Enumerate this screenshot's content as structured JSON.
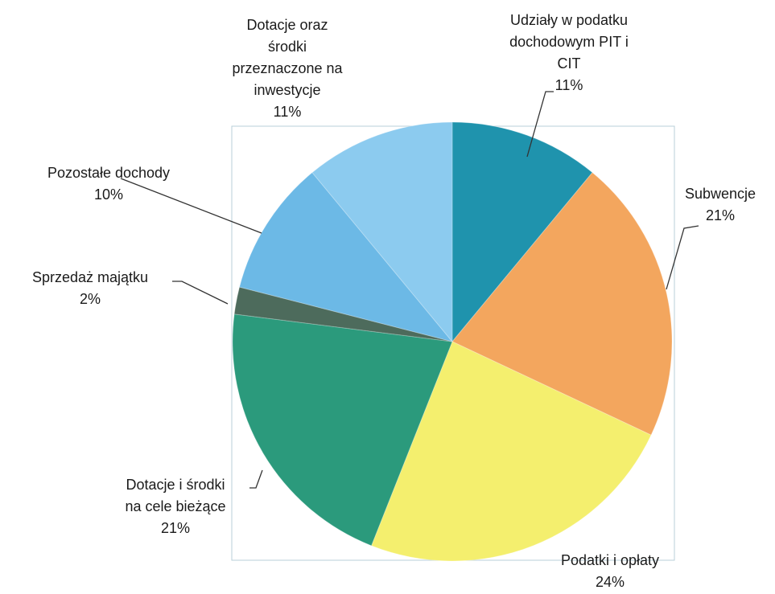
{
  "chart_data": {
    "type": "pie",
    "categories": [
      "Udziały w podatku\ndochodowym PIT i\nCIT",
      "Subwencje",
      "Podatki i opłaty",
      "Dotacje i środki\nna cele bieżące",
      "Sprzedaż majątku",
      "Pozostałe dochody",
      "Dotacje oraz\nśrodki\nprzeznaczone na\ninwestycje"
    ],
    "values": [
      11,
      21,
      24,
      21,
      2,
      10,
      11
    ],
    "value_labels": [
      "11%",
      "21%",
      "24%",
      "21%",
      "2%",
      "10%",
      "11%"
    ],
    "colors": [
      "#1f93ad",
      "#f3a65e",
      "#f4ef6e",
      "#2b9a7c",
      "#4d6b5c",
      "#6cb9e6",
      "#8ccbef"
    ]
  }
}
